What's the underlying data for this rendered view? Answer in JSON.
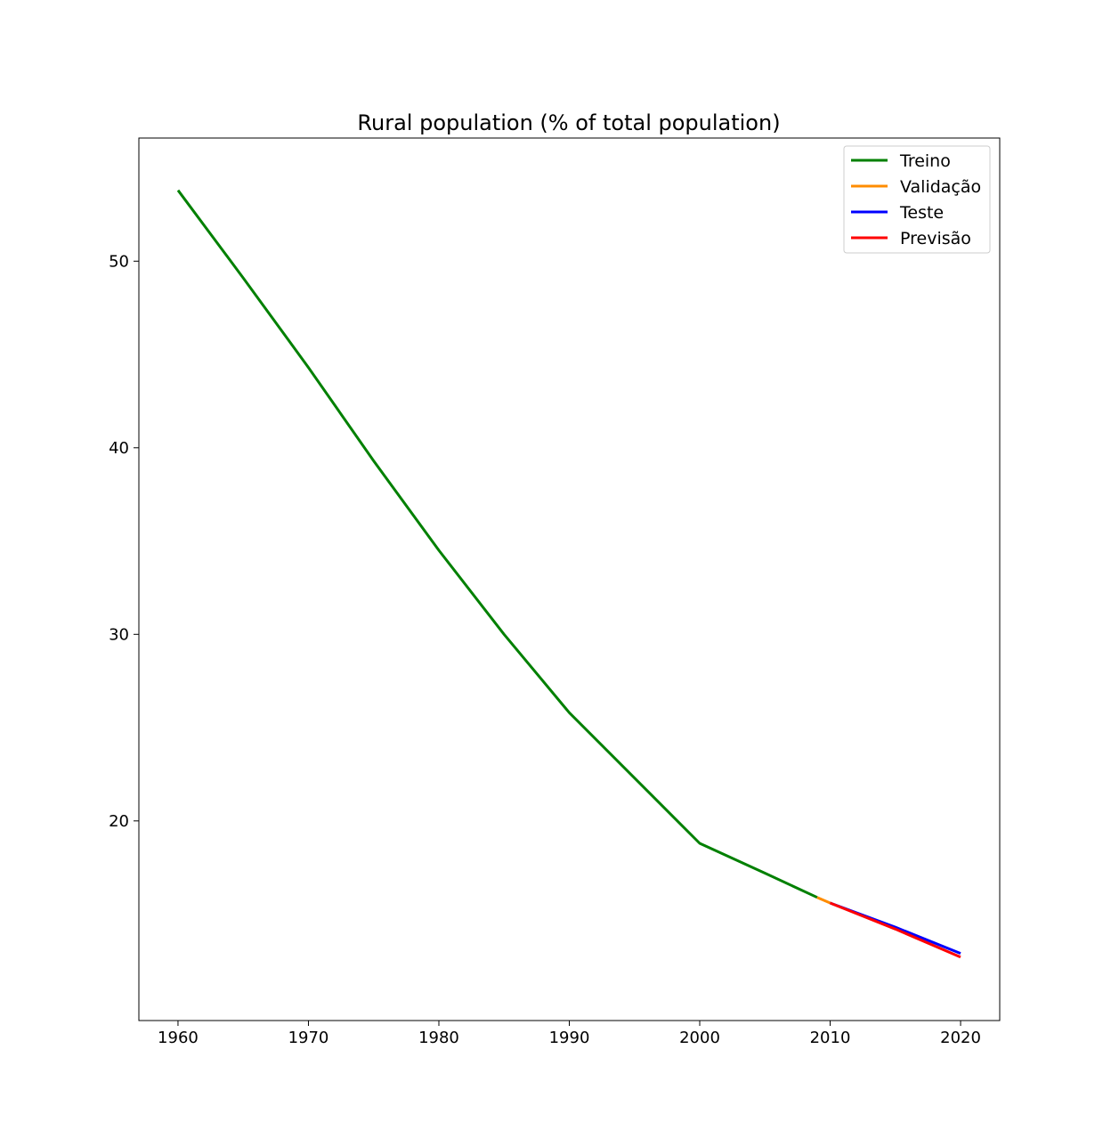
{
  "chart_data": {
    "type": "line",
    "title": "Rural population (% of total population)",
    "xlabel": "",
    "ylabel": "",
    "xlim": [
      1957,
      2023
    ],
    "ylim": [
      9.3,
      56.6
    ],
    "xticks": [
      1960,
      1970,
      1980,
      1990,
      2000,
      2010,
      2020
    ],
    "yticks": [
      20,
      30,
      40,
      50
    ],
    "grid": false,
    "legend_position": "top-right",
    "series": [
      {
        "name": "Treino",
        "color": "#008000",
        "x": [
          1960,
          1965,
          1970,
          1975,
          1980,
          1985,
          1990,
          1996,
          2000,
          2005,
          2009
        ],
        "y": [
          53.8,
          49.1,
          44.3,
          39.3,
          34.5,
          30.0,
          25.8,
          21.6,
          18.8,
          17.2,
          15.9
        ]
      },
      {
        "name": "Validação",
        "color": "#ff8c00",
        "x": [
          2009,
          2010
        ],
        "y": [
          15.9,
          15.6
        ]
      },
      {
        "name": "Teste",
        "color": "#0000ff",
        "x": [
          2010,
          2015,
          2020
        ],
        "y": [
          15.6,
          14.3,
          12.9
        ]
      },
      {
        "name": "Previsão",
        "color": "#ff0000",
        "x": [
          2010,
          2015,
          2020
        ],
        "y": [
          15.6,
          14.2,
          12.7
        ]
      }
    ]
  }
}
